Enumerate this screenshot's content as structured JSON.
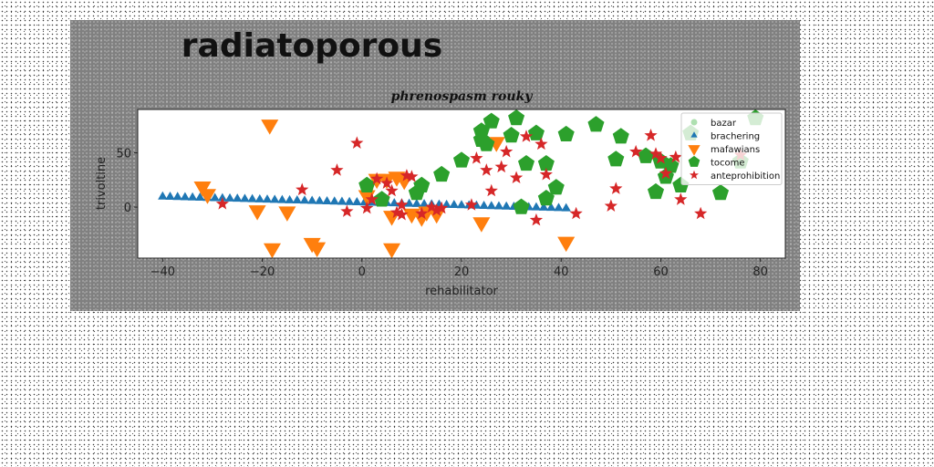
{
  "chart_data": {
    "type": "scatter",
    "title": "radiatoporous",
    "subtitle": "phrenospasm rouky",
    "xlabel": "rehabilitator",
    "ylabel": "trivoltine",
    "xlim": [
      -45,
      85
    ],
    "ylim": [
      -47,
      90
    ],
    "xticks": [
      -40,
      -20,
      0,
      20,
      40,
      60,
      80
    ],
    "yticks": [
      0,
      50
    ],
    "grid": false,
    "legend_position": "top-right",
    "series": [
      {
        "name": "bazar",
        "marker": "circle",
        "color": "#aee0b0",
        "x": [],
        "y": []
      },
      {
        "name": "brachering",
        "marker": "triangle-up",
        "color": "#1f77b4",
        "x": [
          -40,
          -38.5,
          -37,
          -35.5,
          -34,
          -32.5,
          -31,
          -29.5,
          -28,
          -26.5,
          -25,
          -23.5,
          -22,
          -20.5,
          -19,
          -17.5,
          -16,
          -14.5,
          -13,
          -11.5,
          -10,
          -8.5,
          -7,
          -5.5,
          -4,
          -2.5,
          -1,
          0.5,
          2,
          3.5,
          5,
          6.5,
          8,
          9.5,
          11,
          12.5,
          14,
          15.5,
          17,
          18.5,
          20,
          21.5,
          23,
          24.5,
          26,
          27.5,
          29,
          30.5,
          32,
          33.5,
          35,
          36.5,
          38,
          39.5,
          41
        ],
        "y": [
          9.5,
          9.3,
          9.1,
          8.9,
          8.7,
          8.5,
          8.3,
          8.1,
          7.9,
          7.7,
          7.5,
          7.3,
          7.1,
          6.9,
          6.7,
          6.5,
          6.3,
          6.1,
          5.9,
          5.7,
          5.5,
          5.3,
          5.1,
          4.9,
          4.7,
          4.5,
          4.3,
          4.1,
          3.9,
          3.7,
          3.5,
          3.3,
          3.1,
          2.9,
          2.7,
          2.5,
          2.3,
          2.1,
          1.9,
          1.7,
          1.5,
          1.3,
          1.1,
          0.9,
          0.7,
          0.5,
          0.3,
          0.1,
          -0.1,
          -0.3,
          -0.5,
          -0.7,
          -0.9,
          -1.1,
          -1.3
        ]
      },
      {
        "name": "mafawians",
        "marker": "triangle-down",
        "color": "#ff7f0e",
        "x": [
          -18.5,
          -32,
          -31,
          -21,
          -18,
          -15,
          -10,
          -9,
          1,
          3,
          5,
          7,
          8.5,
          6,
          10,
          12,
          6,
          13,
          15,
          24,
          27,
          41
        ],
        "y": [
          76,
          19,
          12,
          -3,
          -38,
          -4,
          -33,
          -37,
          11,
          26,
          26,
          28,
          25,
          -8,
          -6,
          -9,
          -38,
          -4,
          -6,
          -14,
          60,
          -32
        ]
      },
      {
        "name": "tocome",
        "marker": "pentagon",
        "color": "#2ca02c",
        "x": [
          26,
          31,
          24,
          24,
          25,
          30,
          35,
          37,
          41,
          47,
          52,
          51,
          57,
          60,
          62,
          59,
          61,
          64,
          72,
          79,
          76,
          66,
          20,
          33,
          37,
          39,
          12,
          11,
          16,
          1,
          4,
          32
        ],
        "y": [
          79,
          82,
          70,
          62,
          58,
          66,
          68,
          40,
          67,
          76,
          65,
          44,
          47,
          42,
          38,
          14,
          28,
          20,
          13,
          82,
          42,
          68,
          43,
          40,
          8,
          18,
          20,
          13,
          30,
          20,
          7,
          0
        ]
      },
      {
        "name": "anteprohibition",
        "marker": "star",
        "color": "#d62728",
        "x": [
          -28,
          -12,
          -5,
          -3,
          -1,
          2,
          3,
          5,
          6,
          7,
          8,
          9,
          10,
          12,
          14,
          15,
          16,
          22,
          23,
          25,
          26,
          28,
          29,
          31,
          33,
          35,
          36,
          37,
          43,
          50,
          51,
          55,
          58,
          59,
          60,
          61,
          63,
          64,
          68,
          76,
          1,
          8
        ],
        "y": [
          3,
          16,
          34,
          -4,
          59,
          7,
          26,
          22,
          15,
          -5,
          2,
          29,
          28,
          -6,
          0,
          -3,
          -1,
          2,
          45,
          34,
          15,
          37,
          51,
          27,
          65,
          -12,
          58,
          30,
          -6,
          1,
          17,
          51,
          66,
          49,
          45,
          31,
          46,
          7,
          -6,
          48,
          -1,
          -7
        ]
      }
    ]
  }
}
